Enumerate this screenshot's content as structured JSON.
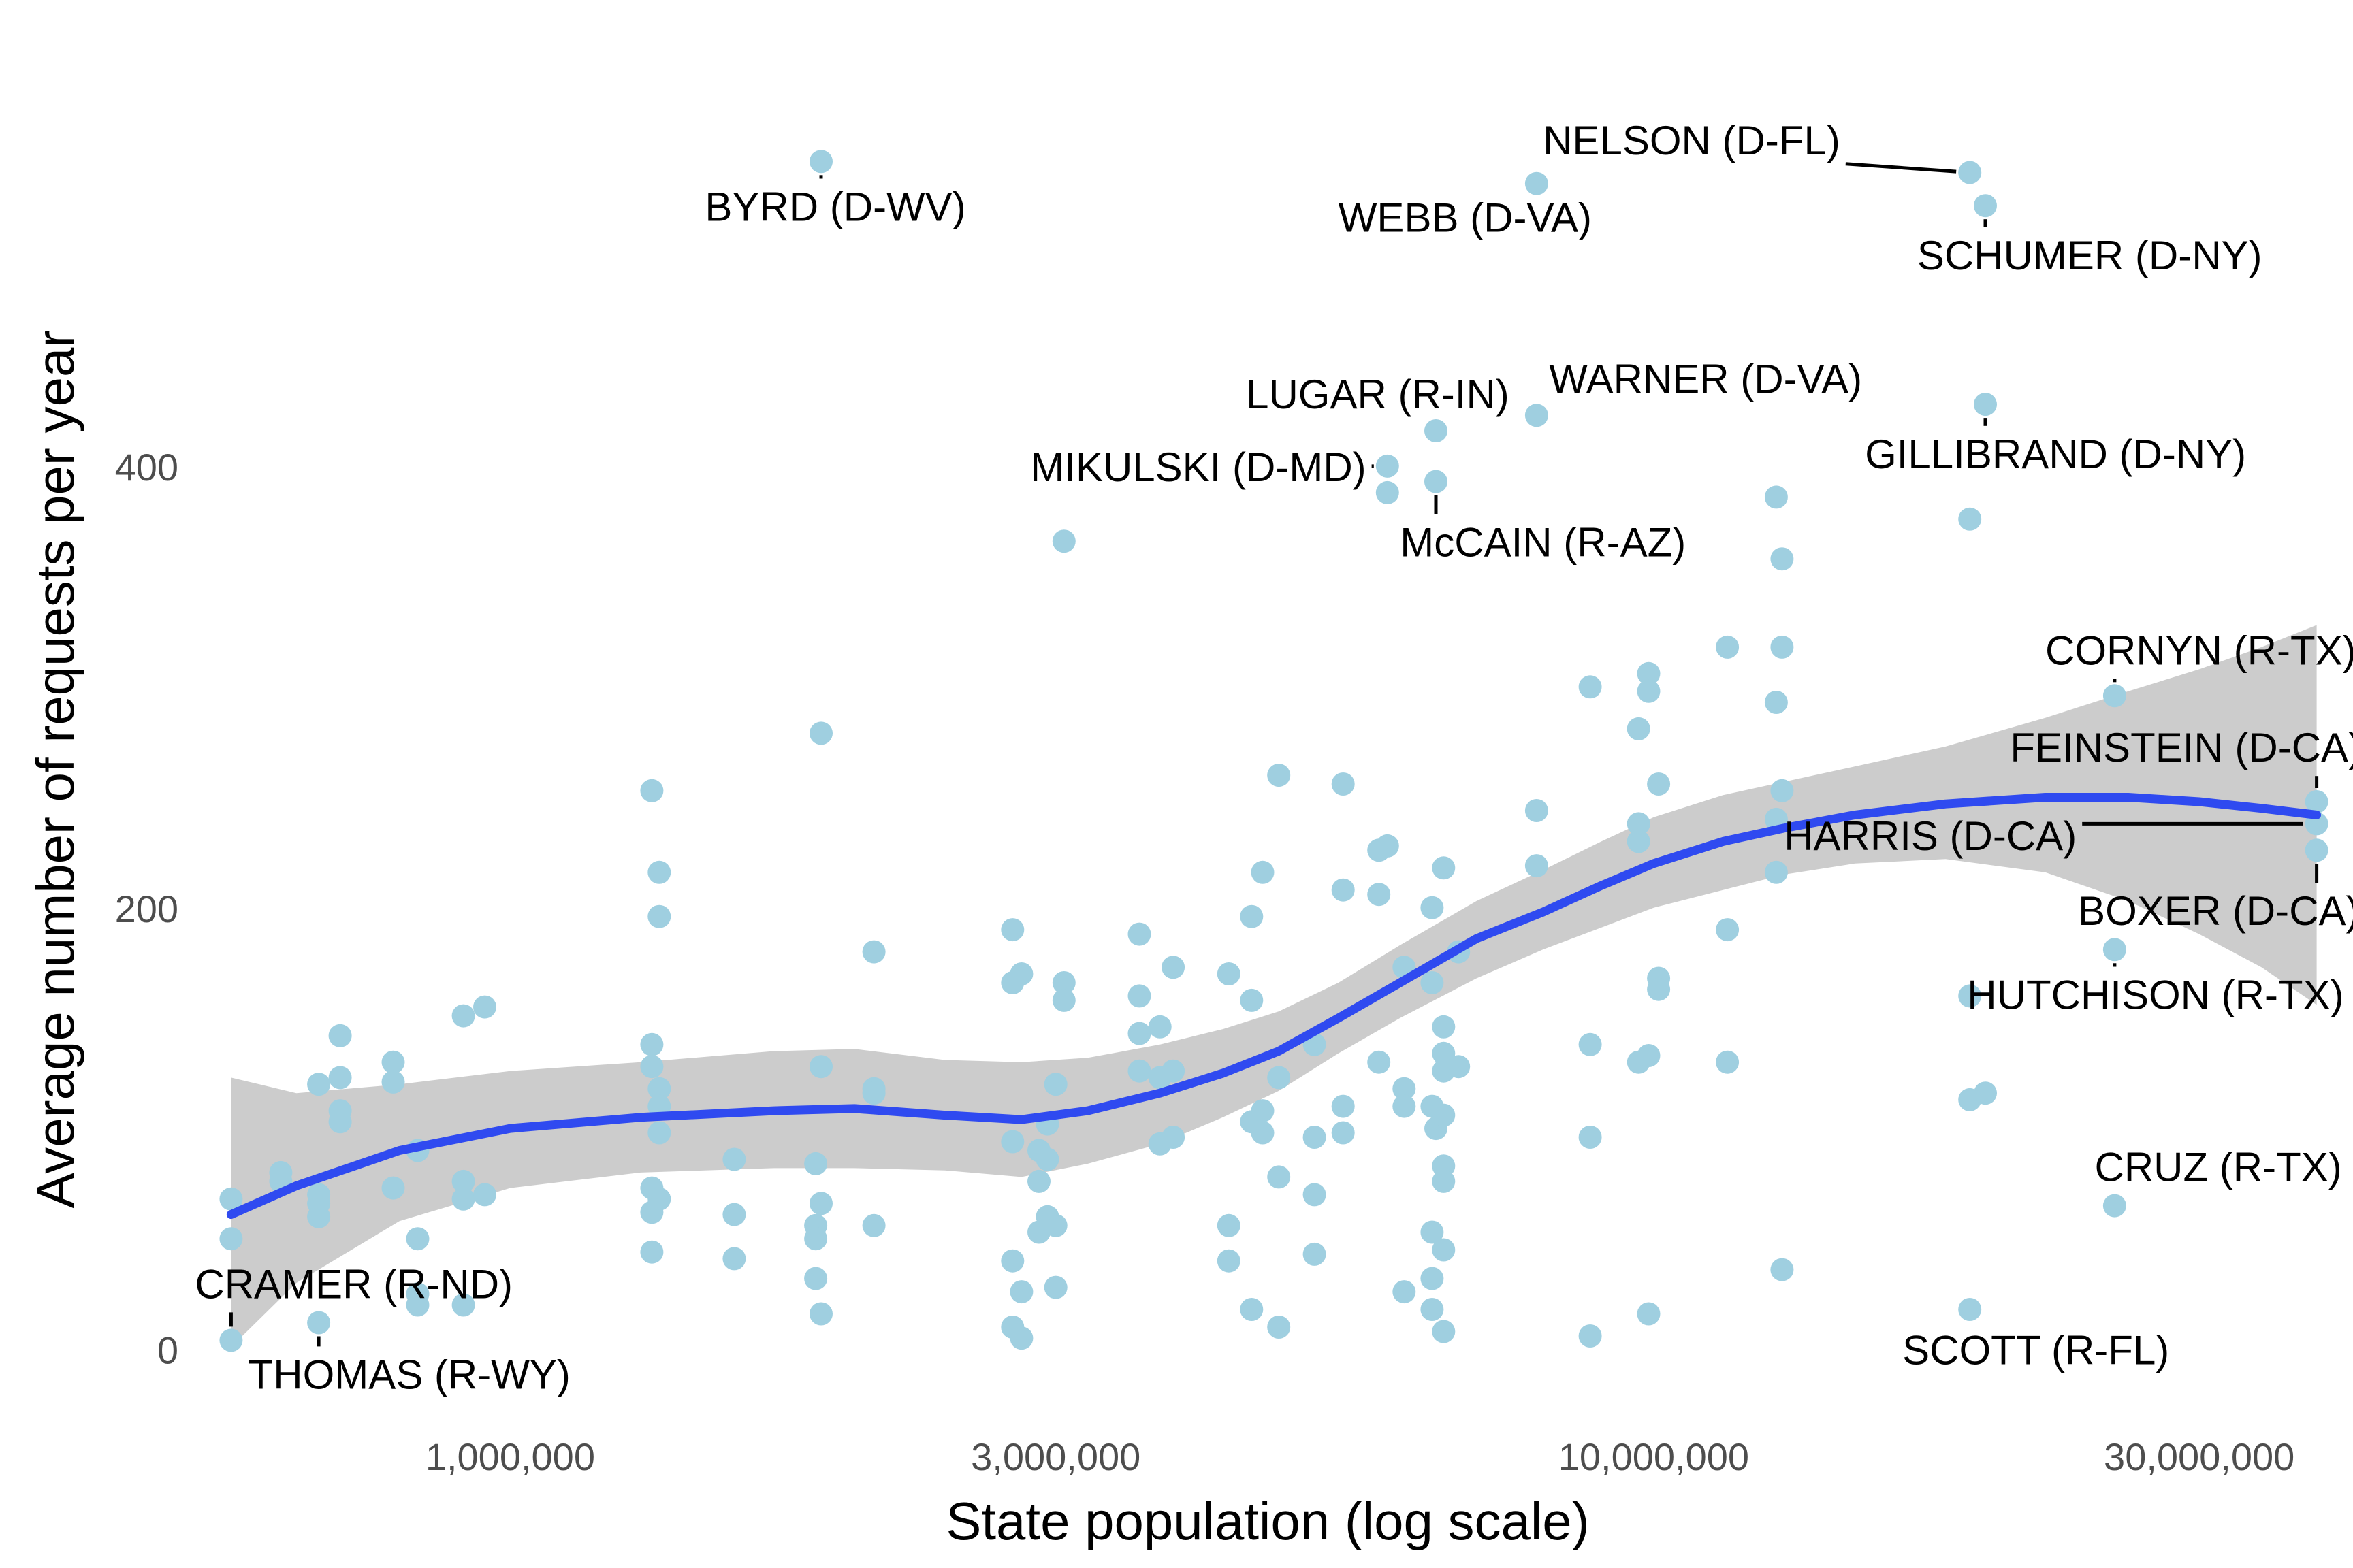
{
  "chart_data": {
    "type": "scatter",
    "title": "",
    "xlabel": "State population (log scale)",
    "ylabel": "Average number of requests per year",
    "x_scale": "log",
    "xlim": [
      540000,
      40000000
    ],
    "ylim": [
      -25,
      570
    ],
    "x_ticks": [
      {
        "value": 1000000,
        "label": "1,000,000"
      },
      {
        "value": 3000000,
        "label": "3,000,000"
      },
      {
        "value": 10000000,
        "label": "10,000,000"
      },
      {
        "value": 30000000,
        "label": "30,000,000"
      }
    ],
    "y_ticks": [
      {
        "value": 0,
        "label": "0"
      },
      {
        "value": 200,
        "label": "200"
      },
      {
        "value": 400,
        "label": "400"
      }
    ],
    "grid": false,
    "colors": {
      "points": "#9fcfe0",
      "trend": "#2f4af0",
      "band": "#cccccc",
      "leader": "#000000"
    },
    "points": [
      {
        "x": 570000,
        "y": 70
      },
      {
        "x": 570000,
        "y": 52
      },
      {
        "x": 570000,
        "y": 6
      },
      {
        "x": 630000,
        "y": 78
      },
      {
        "x": 630000,
        "y": 82
      },
      {
        "x": 680000,
        "y": 122
      },
      {
        "x": 680000,
        "y": 72
      },
      {
        "x": 680000,
        "y": 68
      },
      {
        "x": 680000,
        "y": 62
      },
      {
        "x": 680000,
        "y": 14
      },
      {
        "x": 710000,
        "y": 144
      },
      {
        "x": 710000,
        "y": 125
      },
      {
        "x": 710000,
        "y": 110
      },
      {
        "x": 710000,
        "y": 105
      },
      {
        "x": 790000,
        "y": 132
      },
      {
        "x": 790000,
        "y": 123
      },
      {
        "x": 790000,
        "y": 75
      },
      {
        "x": 830000,
        "y": 92
      },
      {
        "x": 830000,
        "y": 52
      },
      {
        "x": 830000,
        "y": 27
      },
      {
        "x": 830000,
        "y": 22
      },
      {
        "x": 910000,
        "y": 153
      },
      {
        "x": 910000,
        "y": 78
      },
      {
        "x": 910000,
        "y": 70
      },
      {
        "x": 910000,
        "y": 22
      },
      {
        "x": 950000,
        "y": 157
      },
      {
        "x": 950000,
        "y": 72
      },
      {
        "x": 1330000,
        "y": 255
      },
      {
        "x": 1330000,
        "y": 140
      },
      {
        "x": 1330000,
        "y": 130
      },
      {
        "x": 1330000,
        "y": 75
      },
      {
        "x": 1330000,
        "y": 64
      },
      {
        "x": 1330000,
        "y": 46
      },
      {
        "x": 1350000,
        "y": 218
      },
      {
        "x": 1350000,
        "y": 198
      },
      {
        "x": 1350000,
        "y": 120
      },
      {
        "x": 1350000,
        "y": 112
      },
      {
        "x": 1350000,
        "y": 100
      },
      {
        "x": 1350000,
        "y": 70
      },
      {
        "x": 1570000,
        "y": 88
      },
      {
        "x": 1570000,
        "y": 63
      },
      {
        "x": 1570000,
        "y": 43
      },
      {
        "x": 1850000,
        "y": 86
      },
      {
        "x": 1850000,
        "y": 58
      },
      {
        "x": 1850000,
        "y": 52
      },
      {
        "x": 1850000,
        "y": 34
      },
      {
        "x": 1870000,
        "y": 540
      },
      {
        "x": 1870000,
        "y": 281
      },
      {
        "x": 1870000,
        "y": 130
      },
      {
        "x": 1870000,
        "y": 68
      },
      {
        "x": 1870000,
        "y": 18
      },
      {
        "x": 2080000,
        "y": 182
      },
      {
        "x": 2080000,
        "y": 120
      },
      {
        "x": 2080000,
        "y": 118
      },
      {
        "x": 2080000,
        "y": 58
      },
      {
        "x": 2750000,
        "y": 192
      },
      {
        "x": 2750000,
        "y": 168
      },
      {
        "x": 2750000,
        "y": 96
      },
      {
        "x": 2750000,
        "y": 42
      },
      {
        "x": 2750000,
        "y": 12
      },
      {
        "x": 2800000,
        "y": 172
      },
      {
        "x": 2800000,
        "y": 28
      },
      {
        "x": 2800000,
        "y": 7
      },
      {
        "x": 2900000,
        "y": 92
      },
      {
        "x": 2900000,
        "y": 78
      },
      {
        "x": 2900000,
        "y": 55
      },
      {
        "x": 2950000,
        "y": 88
      },
      {
        "x": 2950000,
        "y": 104
      },
      {
        "x": 2950000,
        "y": 62
      },
      {
        "x": 3000000,
        "y": 122
      },
      {
        "x": 3000000,
        "y": 58
      },
      {
        "x": 3000000,
        "y": 30
      },
      {
        "x": 3050000,
        "y": 168
      },
      {
        "x": 3050000,
        "y": 160
      },
      {
        "x": 3050000,
        "y": 368
      },
      {
        "x": 3550000,
        "y": 190
      },
      {
        "x": 3550000,
        "y": 162
      },
      {
        "x": 3550000,
        "y": 145
      },
      {
        "x": 3550000,
        "y": 128
      },
      {
        "x": 3700000,
        "y": 148
      },
      {
        "x": 3700000,
        "y": 125
      },
      {
        "x": 3700000,
        "y": 95
      },
      {
        "x": 3800000,
        "y": 175
      },
      {
        "x": 3800000,
        "y": 128
      },
      {
        "x": 3800000,
        "y": 98
      },
      {
        "x": 4250000,
        "y": 172
      },
      {
        "x": 4250000,
        "y": 58
      },
      {
        "x": 4250000,
        "y": 42
      },
      {
        "x": 4450000,
        "y": 198
      },
      {
        "x": 4450000,
        "y": 160
      },
      {
        "x": 4450000,
        "y": 105
      },
      {
        "x": 4450000,
        "y": 20
      },
      {
        "x": 4550000,
        "y": 218
      },
      {
        "x": 4550000,
        "y": 110
      },
      {
        "x": 4550000,
        "y": 100
      },
      {
        "x": 4700000,
        "y": 262
      },
      {
        "x": 4700000,
        "y": 125
      },
      {
        "x": 4700000,
        "y": 80
      },
      {
        "x": 4700000,
        "y": 12
      },
      {
        "x": 5050000,
        "y": 140
      },
      {
        "x": 5050000,
        "y": 98
      },
      {
        "x": 5050000,
        "y": 72
      },
      {
        "x": 5050000,
        "y": 45
      },
      {
        "x": 5350000,
        "y": 258
      },
      {
        "x": 5350000,
        "y": 210
      },
      {
        "x": 5350000,
        "y": 112
      },
      {
        "x": 5350000,
        "y": 100
      },
      {
        "x": 5750000,
        "y": 228
      },
      {
        "x": 5750000,
        "y": 208
      },
      {
        "x": 5750000,
        "y": 132
      },
      {
        "x": 5850000,
        "y": 402
      },
      {
        "x": 5850000,
        "y": 390
      },
      {
        "x": 5850000,
        "y": 230
      },
      {
        "x": 6050000,
        "y": 175
      },
      {
        "x": 6050000,
        "y": 120
      },
      {
        "x": 6050000,
        "y": 112
      },
      {
        "x": 6050000,
        "y": 28
      },
      {
        "x": 6400000,
        "y": 202
      },
      {
        "x": 6400000,
        "y": 168
      },
      {
        "x": 6400000,
        "y": 112
      },
      {
        "x": 6400000,
        "y": 55
      },
      {
        "x": 6400000,
        "y": 34
      },
      {
        "x": 6400000,
        "y": 20
      },
      {
        "x": 6450000,
        "y": 418
      },
      {
        "x": 6450000,
        "y": 395
      },
      {
        "x": 6450000,
        "y": 102
      },
      {
        "x": 6550000,
        "y": 220
      },
      {
        "x": 6550000,
        "y": 148
      },
      {
        "x": 6550000,
        "y": 136
      },
      {
        "x": 6550000,
        "y": 128
      },
      {
        "x": 6550000,
        "y": 108
      },
      {
        "x": 6550000,
        "y": 85
      },
      {
        "x": 6550000,
        "y": 78
      },
      {
        "x": 6550000,
        "y": 47
      },
      {
        "x": 6550000,
        "y": 10
      },
      {
        "x": 6750000,
        "y": 182
      },
      {
        "x": 6750000,
        "y": 130
      },
      {
        "x": 7900000,
        "y": 530
      },
      {
        "x": 7900000,
        "y": 425
      },
      {
        "x": 7900000,
        "y": 246
      },
      {
        "x": 7900000,
        "y": 221
      },
      {
        "x": 8800000,
        "y": 302
      },
      {
        "x": 8800000,
        "y": 140
      },
      {
        "x": 8800000,
        "y": 98
      },
      {
        "x": 8800000,
        "y": 8
      },
      {
        "x": 9700000,
        "y": 283
      },
      {
        "x": 9700000,
        "y": 240
      },
      {
        "x": 9700000,
        "y": 232
      },
      {
        "x": 9700000,
        "y": 132
      },
      {
        "x": 9900000,
        "y": 308
      },
      {
        "x": 9900000,
        "y": 300
      },
      {
        "x": 9900000,
        "y": 135
      },
      {
        "x": 9900000,
        "y": 18
      },
      {
        "x": 10100000,
        "y": 258
      },
      {
        "x": 10100000,
        "y": 170
      },
      {
        "x": 10100000,
        "y": 165
      },
      {
        "x": 11600000,
        "y": 320
      },
      {
        "x": 11600000,
        "y": 192
      },
      {
        "x": 11600000,
        "y": 132
      },
      {
        "x": 12800000,
        "y": 388
      },
      {
        "x": 12800000,
        "y": 295
      },
      {
        "x": 12800000,
        "y": 242
      },
      {
        "x": 12800000,
        "y": 218
      },
      {
        "x": 12950000,
        "y": 360
      },
      {
        "x": 12950000,
        "y": 320
      },
      {
        "x": 12950000,
        "y": 255
      },
      {
        "x": 12950000,
        "y": 38
      },
      {
        "x": 18900000,
        "y": 535
      },
      {
        "x": 18900000,
        "y": 378
      },
      {
        "x": 18900000,
        "y": 162
      },
      {
        "x": 18900000,
        "y": 115
      },
      {
        "x": 18900000,
        "y": 20
      },
      {
        "x": 19500000,
        "y": 520
      },
      {
        "x": 19500000,
        "y": 430
      },
      {
        "x": 19500000,
        "y": 118
      },
      {
        "x": 25300000,
        "y": 298
      },
      {
        "x": 25300000,
        "y": 183
      },
      {
        "x": 25300000,
        "y": 67
      },
      {
        "x": 38000000,
        "y": 250
      },
      {
        "x": 38000000,
        "y": 240
      },
      {
        "x": 38000000,
        "y": 228
      }
    ],
    "smooth": [
      {
        "x": 570000,
        "y": 63
      },
      {
        "x": 650000,
        "y": 76
      },
      {
        "x": 800000,
        "y": 92
      },
      {
        "x": 1000000,
        "y": 102
      },
      {
        "x": 1300000,
        "y": 107
      },
      {
        "x": 1700000,
        "y": 110
      },
      {
        "x": 2000000,
        "y": 111
      },
      {
        "x": 2400000,
        "y": 108
      },
      {
        "x": 2800000,
        "y": 106
      },
      {
        "x": 3200000,
        "y": 110
      },
      {
        "x": 3700000,
        "y": 118
      },
      {
        "x": 4200000,
        "y": 127
      },
      {
        "x": 4700000,
        "y": 137
      },
      {
        "x": 5300000,
        "y": 152
      },
      {
        "x": 6000000,
        "y": 168
      },
      {
        "x": 7000000,
        "y": 188
      },
      {
        "x": 8000000,
        "y": 200
      },
      {
        "x": 9000000,
        "y": 212
      },
      {
        "x": 10000000,
        "y": 222
      },
      {
        "x": 11500000,
        "y": 232
      },
      {
        "x": 13000000,
        "y": 238
      },
      {
        "x": 15000000,
        "y": 244
      },
      {
        "x": 18000000,
        "y": 249
      },
      {
        "x": 22000000,
        "y": 252
      },
      {
        "x": 26000000,
        "y": 252
      },
      {
        "x": 30000000,
        "y": 250
      },
      {
        "x": 34000000,
        "y": 247
      },
      {
        "x": 38000000,
        "y": 244
      }
    ],
    "band_upper": [
      {
        "x": 570000,
        "y": 125
      },
      {
        "x": 650000,
        "y": 118
      },
      {
        "x": 800000,
        "y": 122
      },
      {
        "x": 1000000,
        "y": 128
      },
      {
        "x": 1300000,
        "y": 132
      },
      {
        "x": 1700000,
        "y": 137
      },
      {
        "x": 2000000,
        "y": 138
      },
      {
        "x": 2400000,
        "y": 133
      },
      {
        "x": 2800000,
        "y": 132
      },
      {
        "x": 3200000,
        "y": 134
      },
      {
        "x": 3700000,
        "y": 140
      },
      {
        "x": 4200000,
        "y": 147
      },
      {
        "x": 4700000,
        "y": 155
      },
      {
        "x": 5300000,
        "y": 168
      },
      {
        "x": 6000000,
        "y": 185
      },
      {
        "x": 7000000,
        "y": 205
      },
      {
        "x": 8000000,
        "y": 219
      },
      {
        "x": 9000000,
        "y": 232
      },
      {
        "x": 10000000,
        "y": 243
      },
      {
        "x": 11500000,
        "y": 253
      },
      {
        "x": 13000000,
        "y": 259
      },
      {
        "x": 15000000,
        "y": 266
      },
      {
        "x": 18000000,
        "y": 275
      },
      {
        "x": 22000000,
        "y": 288
      },
      {
        "x": 26000000,
        "y": 300
      },
      {
        "x": 30000000,
        "y": 310
      },
      {
        "x": 34000000,
        "y": 320
      },
      {
        "x": 38000000,
        "y": 330
      }
    ],
    "band_lower": [
      {
        "x": 570000,
        "y": 3
      },
      {
        "x": 650000,
        "y": 32
      },
      {
        "x": 800000,
        "y": 60
      },
      {
        "x": 1000000,
        "y": 75
      },
      {
        "x": 1300000,
        "y": 82
      },
      {
        "x": 1700000,
        "y": 84
      },
      {
        "x": 2000000,
        "y": 84
      },
      {
        "x": 2400000,
        "y": 83
      },
      {
        "x": 2800000,
        "y": 80
      },
      {
        "x": 3200000,
        "y": 86
      },
      {
        "x": 3700000,
        "y": 95
      },
      {
        "x": 4200000,
        "y": 107
      },
      {
        "x": 4700000,
        "y": 119
      },
      {
        "x": 5300000,
        "y": 136
      },
      {
        "x": 6000000,
        "y": 152
      },
      {
        "x": 7000000,
        "y": 170
      },
      {
        "x": 8000000,
        "y": 183
      },
      {
        "x": 9000000,
        "y": 193
      },
      {
        "x": 10000000,
        "y": 202
      },
      {
        "x": 11500000,
        "y": 210
      },
      {
        "x": 13000000,
        "y": 217
      },
      {
        "x": 15000000,
        "y": 222
      },
      {
        "x": 18000000,
        "y": 224
      },
      {
        "x": 22000000,
        "y": 218
      },
      {
        "x": 26000000,
        "y": 205
      },
      {
        "x": 30000000,
        "y": 190
      },
      {
        "x": 34000000,
        "y": 175
      },
      {
        "x": 38000000,
        "y": 158
      }
    ],
    "annotations": [
      {
        "label": "BYRD (D-WV)",
        "x": 1870000,
        "y": 540,
        "lx": 1480000,
        "ly": 518,
        "anchor": "start"
      },
      {
        "label": "NELSON (D-FL)",
        "x": 18900000,
        "y": 535,
        "lx": 8000000,
        "ly": 548,
        "anchor": "start"
      },
      {
        "label": "WEBB (D-VA)",
        "x": 7900000,
        "y": 530,
        "lx": 5300000,
        "ly": 513,
        "anchor": "start"
      },
      {
        "label": "SCHUMER (D-NY)",
        "x": 19500000,
        "y": 520,
        "lx": 17000000,
        "ly": 496,
        "anchor": "start"
      },
      {
        "label": "WARNER (D-VA)",
        "x": 7900000,
        "y": 425,
        "lx": 8100000,
        "ly": 440,
        "anchor": "start"
      },
      {
        "label": "LUGAR (R-IN)",
        "x": 6450000,
        "y": 418,
        "lx": 4400000,
        "ly": 433,
        "anchor": "start"
      },
      {
        "label": "GILLIBRAND (D-NY)",
        "x": 19500000,
        "y": 430,
        "lx": 15300000,
        "ly": 406,
        "anchor": "start"
      },
      {
        "label": "MIKULSKI (D-MD)",
        "x": 5850000,
        "y": 402,
        "lx": 2850000,
        "ly": 400,
        "anchor": "start"
      },
      {
        "label": "McCAIN (R-AZ)",
        "x": 6450000,
        "y": 395,
        "lx": 6000000,
        "ly": 366,
        "anchor": "start"
      },
      {
        "label": "CORNYN (R-TX)",
        "x": 25300000,
        "y": 298,
        "lx": 22000000,
        "ly": 317,
        "anchor": "start"
      },
      {
        "label": "FEINSTEIN (D-CA)",
        "x": 38000000,
        "y": 250,
        "lx": 20500000,
        "ly": 273,
        "anchor": "start"
      },
      {
        "label": "HARRIS (D-CA)",
        "x": 38000000,
        "y": 240,
        "lx": 13000000,
        "ly": 233,
        "anchor": "start"
      },
      {
        "label": "BOXER (D-CA)",
        "x": 38000000,
        "y": 228,
        "lx": 23500000,
        "ly": 199,
        "anchor": "start"
      },
      {
        "label": "HUTCHISON (R-TX)",
        "x": 25300000,
        "y": 183,
        "lx": 18800000,
        "ly": 161,
        "anchor": "start"
      },
      {
        "label": "CRUZ (R-TX)",
        "x": 25300000,
        "y": 67,
        "lx": 24300000,
        "ly": 83,
        "anchor": "start"
      },
      {
        "label": "CRAMER (R-ND)",
        "x": 570000,
        "y": 6,
        "lx": 530000,
        "ly": 30,
        "anchor": "start"
      },
      {
        "label": "THOMAS (R-WY)",
        "x": 680000,
        "y": 14,
        "lx": 590000,
        "ly": -11,
        "anchor": "start"
      },
      {
        "label": "SCOTT (R-FL)",
        "x": 18900000,
        "y": 20,
        "lx": 16500000,
        "ly": 0,
        "anchor": "start"
      }
    ]
  }
}
